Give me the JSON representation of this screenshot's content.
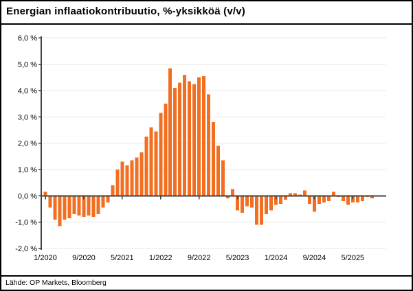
{
  "title": "Energian inflaatiokontribuutio, %-yksikköä (v/v)",
  "footer": {
    "source": "Lähde: OP Markets, Bloomberg"
  },
  "colors": {
    "bar": "#F26F21",
    "grid": "#E7E7E7",
    "axis": "#404040",
    "text": "#000000",
    "background": "#FFFFFF"
  },
  "chart_data": {
    "type": "bar",
    "title": "Energian inflaatiokontribuutio, %-yksikköä (v/v)",
    "xlabel": "",
    "ylabel": "",
    "ylim": [
      -2.0,
      6.0
    ],
    "grid": true,
    "legend": "none",
    "yticks": [
      {
        "value": 6,
        "label": "6,0 %"
      },
      {
        "value": 5,
        "label": "5,0 %"
      },
      {
        "value": 4,
        "label": "4,0 %"
      },
      {
        "value": 3,
        "label": "3,0 %"
      },
      {
        "value": 2,
        "label": "2,0 %"
      },
      {
        "value": 1,
        "label": "1,0 %"
      },
      {
        "value": 0,
        "label": "0,0 %"
      },
      {
        "value": -1,
        "label": "-1,0 %"
      },
      {
        "value": -2,
        "label": "-2,0 %"
      }
    ],
    "xticks": [
      {
        "index": 0,
        "label": "1/2020"
      },
      {
        "index": 8,
        "label": "9/2020"
      },
      {
        "index": 16,
        "label": "5/2021"
      },
      {
        "index": 24,
        "label": "1/2022"
      },
      {
        "index": 32,
        "label": "9/2022"
      },
      {
        "index": 40,
        "label": "5/2023"
      },
      {
        "index": 48,
        "label": "1/2024"
      },
      {
        "index": 56,
        "label": "9/2024"
      },
      {
        "index": 64,
        "label": "5/2025"
      }
    ],
    "categories": [
      "1/2020",
      "2/2020",
      "3/2020",
      "4/2020",
      "5/2020",
      "6/2020",
      "7/2020",
      "8/2020",
      "9/2020",
      "10/2020",
      "11/2020",
      "12/2020",
      "1/2021",
      "2/2021",
      "3/2021",
      "4/2021",
      "5/2021",
      "6/2021",
      "7/2021",
      "8/2021",
      "9/2021",
      "10/2021",
      "11/2021",
      "12/2021",
      "1/2022",
      "2/2022",
      "3/2022",
      "4/2022",
      "5/2022",
      "6/2022",
      "7/2022",
      "8/2022",
      "9/2022",
      "10/2022",
      "11/2022",
      "12/2022",
      "1/2023",
      "2/2023",
      "3/2023",
      "4/2023",
      "5/2023",
      "6/2023",
      "7/2023",
      "8/2023",
      "9/2023",
      "10/2023",
      "11/2023",
      "12/2023",
      "1/2024",
      "2/2024",
      "3/2024",
      "4/2024",
      "5/2024",
      "6/2024",
      "7/2024",
      "8/2024",
      "9/2024",
      "10/2024",
      "11/2024",
      "12/2024",
      "1/2025",
      "2/2025",
      "3/2025",
      "4/2025",
      "5/2025",
      "6/2025",
      "7/2025",
      "8/2025",
      "9/2025"
    ],
    "values": [
      0.15,
      -0.45,
      -0.9,
      -1.15,
      -0.9,
      -0.85,
      -0.7,
      -0.75,
      -0.8,
      -0.75,
      -0.8,
      -0.7,
      -0.45,
      -0.25,
      0.4,
      1.0,
      1.3,
      1.15,
      1.35,
      1.45,
      1.65,
      2.25,
      2.6,
      2.45,
      3.15,
      3.5,
      4.85,
      4.1,
      4.3,
      4.6,
      4.35,
      4.25,
      4.5,
      4.55,
      3.85,
      2.8,
      1.9,
      1.35,
      -0.1,
      0.25,
      -0.55,
      -0.65,
      -0.4,
      -0.45,
      -1.1,
      -1.1,
      -0.7,
      -0.55,
      -0.35,
      -0.3,
      -0.15,
      0.1,
      0.1,
      0.05,
      0.2,
      -0.3,
      -0.6,
      -0.3,
      -0.25,
      -0.2,
      0.15,
      -0.05,
      -0.2,
      -0.35,
      -0.25,
      -0.25,
      -0.2,
      -0.05,
      -0.1
    ]
  }
}
